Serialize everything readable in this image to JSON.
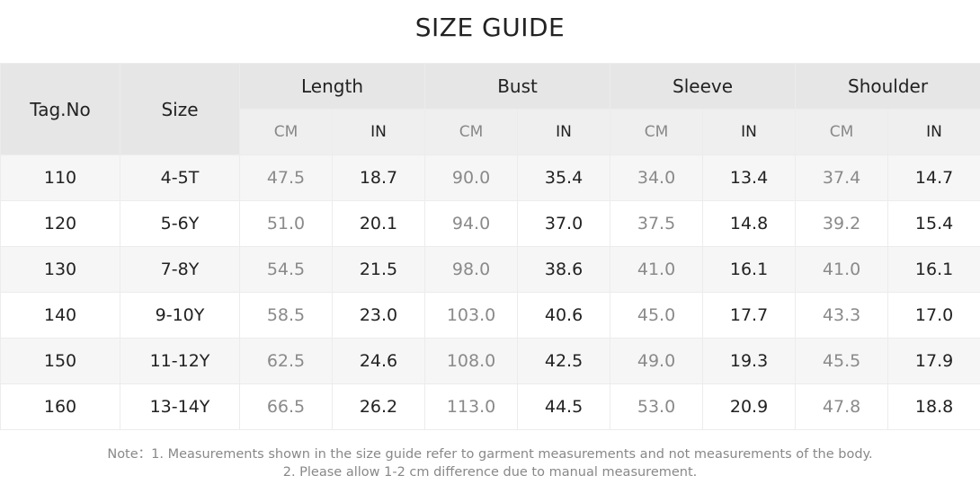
{
  "title": "SIZE GUIDE",
  "headers": {
    "tag": "Tag.No",
    "size": "Size",
    "groups": [
      "Length",
      "Bust",
      "Sleeve",
      "Shoulder"
    ],
    "units": [
      "CM",
      "IN"
    ]
  },
  "rows": [
    {
      "tag": "110",
      "size": "4-5T",
      "values": [
        "47.5",
        "18.7",
        "90.0",
        "35.4",
        "34.0",
        "13.4",
        "37.4",
        "14.7"
      ]
    },
    {
      "tag": "120",
      "size": "5-6Y",
      "values": [
        "51.0",
        "20.1",
        "94.0",
        "37.0",
        "37.5",
        "14.8",
        "39.2",
        "15.4"
      ]
    },
    {
      "tag": "130",
      "size": "7-8Y",
      "values": [
        "54.5",
        "21.5",
        "98.0",
        "38.6",
        "41.0",
        "16.1",
        "41.0",
        "16.1"
      ]
    },
    {
      "tag": "140",
      "size": "9-10Y",
      "values": [
        "58.5",
        "23.0",
        "103.0",
        "40.6",
        "45.0",
        "17.7",
        "43.3",
        "17.0"
      ]
    },
    {
      "tag": "150",
      "size": "11-12Y",
      "values": [
        "62.5",
        "24.6",
        "108.0",
        "42.5",
        "49.0",
        "19.3",
        "45.5",
        "17.9"
      ]
    },
    {
      "tag": "160",
      "size": "13-14Y",
      "values": [
        "66.5",
        "26.2",
        "113.0",
        "44.5",
        "53.0",
        "20.9",
        "47.8",
        "18.8"
      ]
    }
  ],
  "notes": [
    "Note：1. Measurements shown in the size guide refer to garment measurements and not measurements of the body.",
    "2. Please allow 1-2 cm difference due to manual measurement."
  ]
}
